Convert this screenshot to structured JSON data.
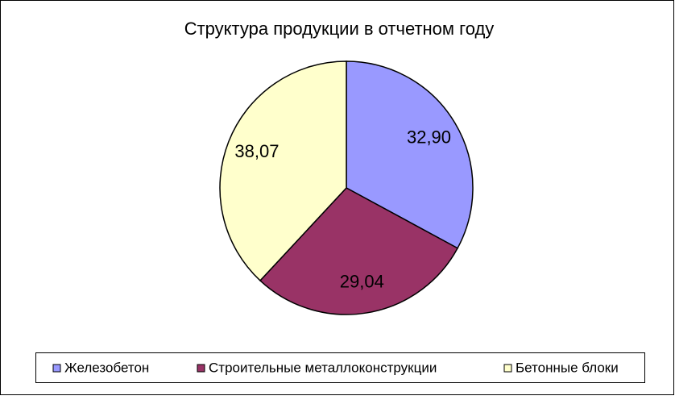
{
  "chart_data": {
    "type": "pie",
    "title": "Структура продукции в отчетном году",
    "categories": [
      "Железобетон",
      "Строительные металлоконструкции",
      "Бетонные блоки"
    ],
    "values": [
      32.9,
      29.04,
      38.07
    ],
    "value_labels": [
      "32,90",
      "29,04",
      "38,07"
    ],
    "colors": [
      "#9999ff",
      "#993366",
      "#ffffcc"
    ],
    "legend": "bottom"
  }
}
